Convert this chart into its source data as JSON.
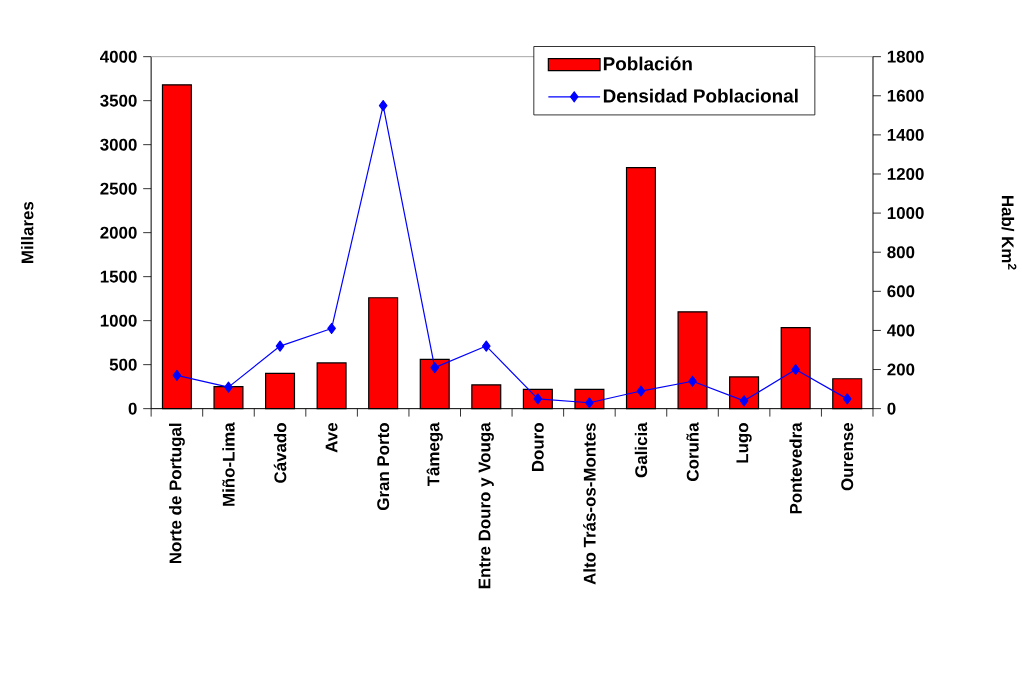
{
  "chart_data": {
    "type": "bar",
    "categories": [
      "Norte de Portugal",
      "Miño-Lima",
      "Cávado",
      "Ave",
      "Gran Porto",
      "Tâmega",
      "Entre Douro y Vouga",
      "Douro",
      "Alto Trás-os-Montes",
      "Galicia",
      "Coruña",
      "Lugo",
      "Pontevedra",
      "Ourense"
    ],
    "series": [
      {
        "name": "Población",
        "color": "#ff0000",
        "values": [
          3680,
          250,
          400,
          520,
          1260,
          560,
          270,
          220,
          220,
          2740,
          1100,
          360,
          920,
          340
        ]
      },
      {
        "name": "Densidad Poblacional",
        "type": "line",
        "axis": "y2",
        "color": "#0000ff",
        "values": [
          170,
          110,
          320,
          410,
          1550,
          210,
          320,
          50,
          30,
          90,
          140,
          40,
          200,
          50
        ]
      }
    ],
    "ylabel": "Millares",
    "y2label": "Hab/ Km$^{2}$",
    "ylim": [
      0,
      4000
    ],
    "yticks": [
      0,
      500,
      1000,
      1500,
      2000,
      2500,
      3000,
      3500,
      4000
    ],
    "y2lim": [
      0,
      1800
    ],
    "y2ticks": [
      0,
      200,
      400,
      600,
      800,
      1000,
      1200,
      1400,
      1600,
      1800
    ],
    "marker": "diamond",
    "line_style": "solid",
    "grid": false,
    "legend": "top right"
  }
}
